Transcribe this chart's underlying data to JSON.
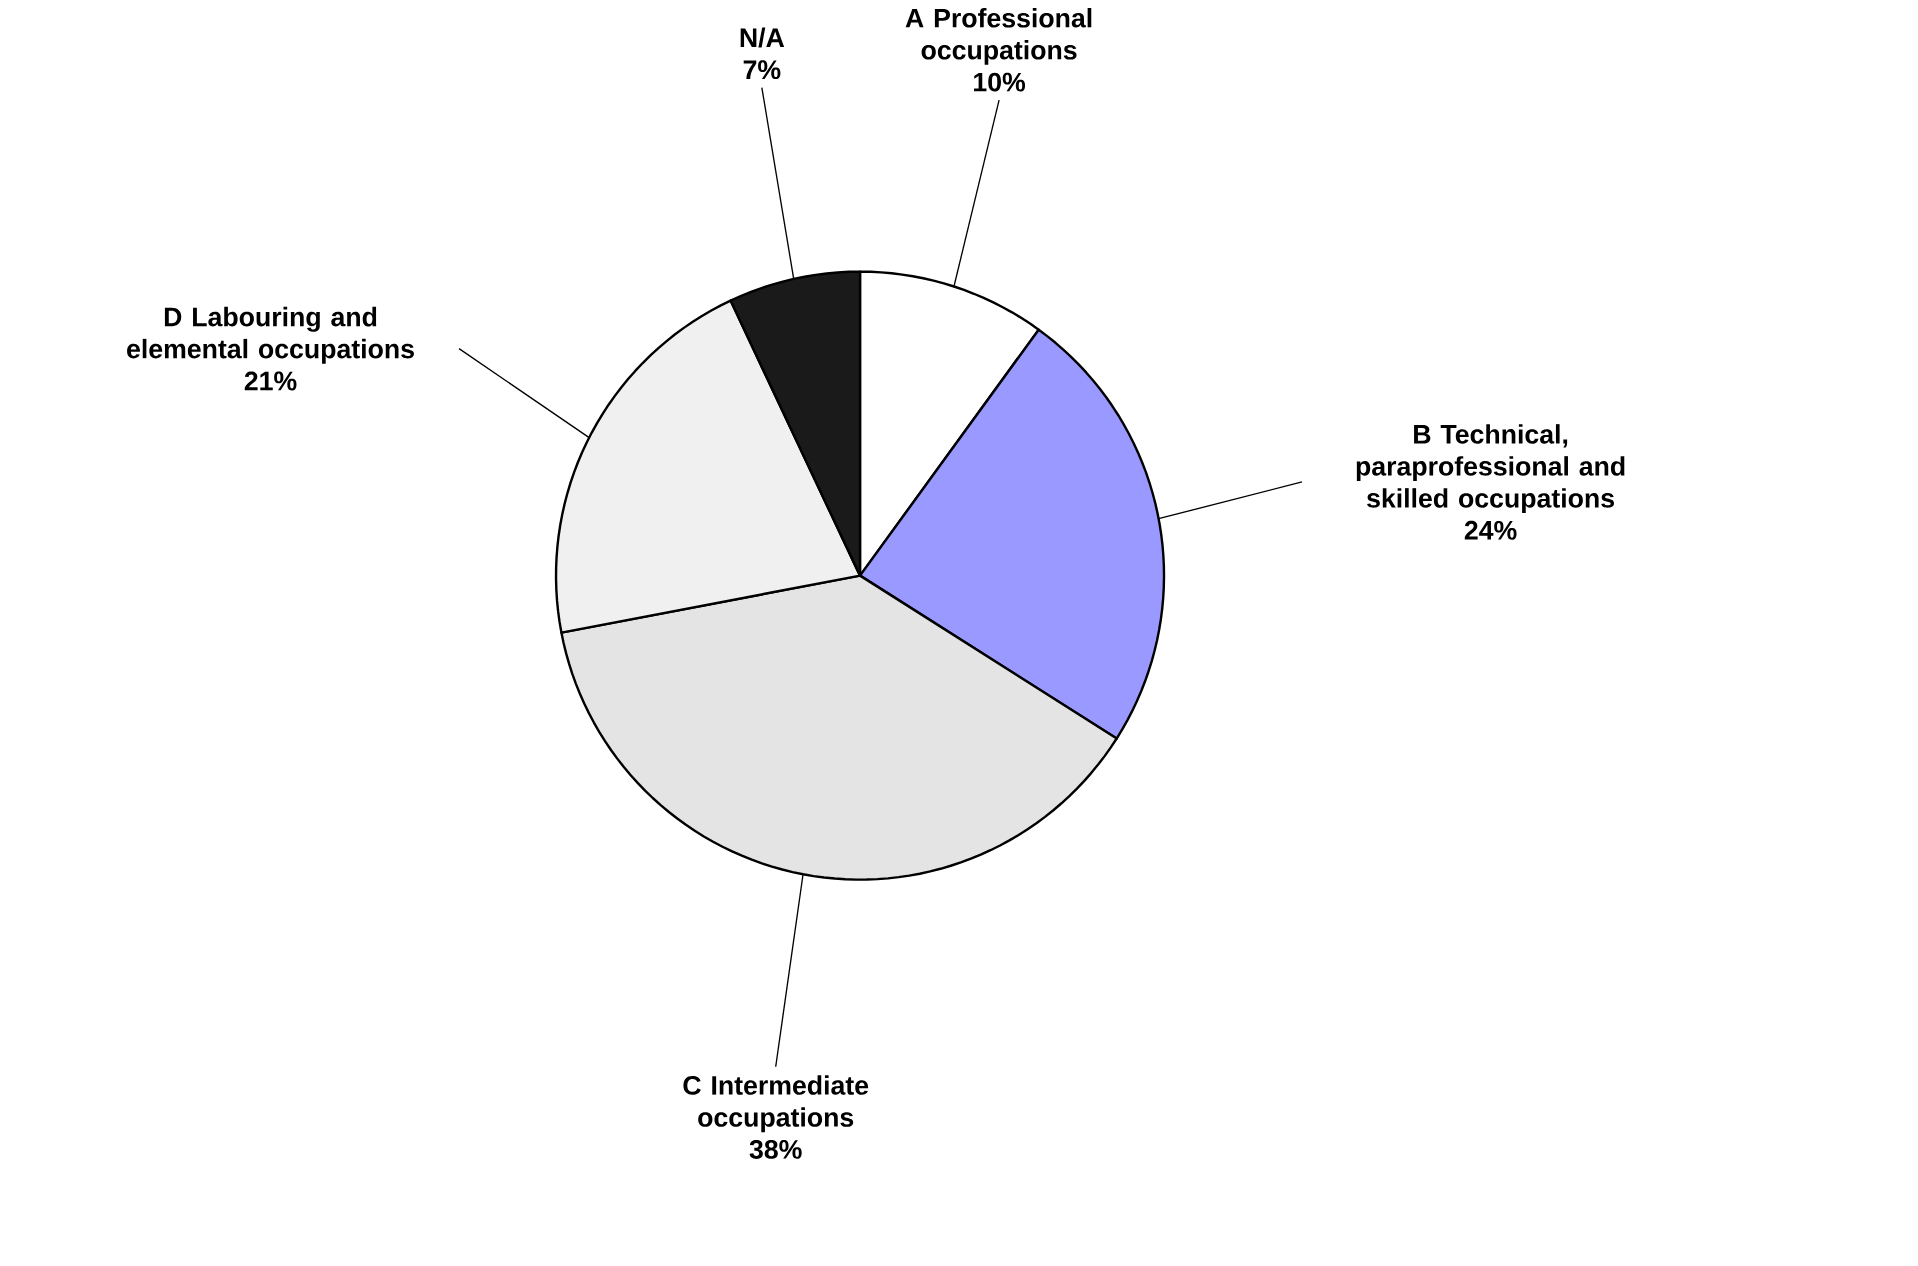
{
  "chart_data": {
    "type": "pie",
    "categories": [
      "A Professional occupations",
      "B Technical, paraprofessional and skilled occupations",
      "C Intermediate occupations",
      "D Labouring and elemental occupations",
      "N/A"
    ],
    "values": [
      10,
      24,
      38,
      21,
      7
    ],
    "value_labels": [
      "10%",
      "24%",
      "38%",
      "21%",
      "7%"
    ],
    "colors": [
      "#ffffff",
      "#9999ff",
      "#e4e4e4",
      "#f0f0f0",
      "#1a1a1a"
    ],
    "legend": false
  }
}
